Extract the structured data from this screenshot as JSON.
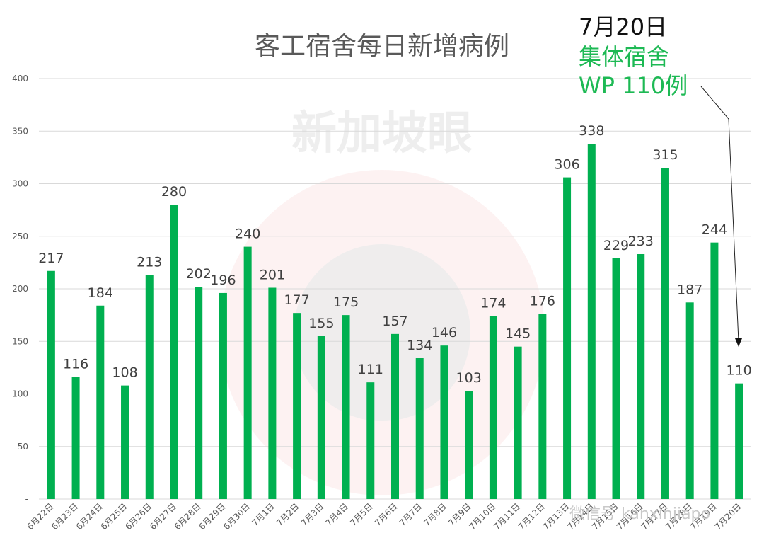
{
  "chart_data": {
    "type": "bar",
    "title": "客工宿舍每日新增病例",
    "categories": [
      "6月22日",
      "6月23日",
      "6月24日",
      "6月25日",
      "6月26日",
      "6月27日",
      "6月28日",
      "6月29日",
      "6月30日",
      "7月1日",
      "7月2日",
      "7月3日",
      "7月4日",
      "7月5日",
      "7月6日",
      "7月7日",
      "7月8日",
      "7月9日",
      "7月10日",
      "7月11日",
      "7月12日",
      "7月13日",
      "7月14日",
      "7月15日",
      "7月16日",
      "7月17日",
      "7月18日",
      "7月19日",
      "7月20日"
    ],
    "values": [
      217,
      116,
      184,
      108,
      213,
      280,
      202,
      196,
      240,
      201,
      177,
      155,
      175,
      111,
      157,
      134,
      146,
      103,
      174,
      145,
      176,
      306,
      338,
      229,
      233,
      315,
      187,
      244,
      110
    ],
    "ylim": [
      0,
      400
    ],
    "yticks": [
      "-",
      "50",
      "100",
      "150",
      "200",
      "250",
      "300",
      "350",
      "400"
    ],
    "grid": true,
    "legend": "none",
    "bar_color": "#00b050",
    "annotation": {
      "date": "7月20日",
      "line1": "集体宿舍",
      "line2": "WP 110例"
    }
  },
  "watermark": {
    "logo_text": "新加坡眼",
    "wechat_text": "微信号 kanxinjiapo"
  },
  "colors": {
    "bar": "#00b050",
    "annotation_green": "#1db954",
    "grid": "#d9d9d9",
    "text": "#595959"
  }
}
